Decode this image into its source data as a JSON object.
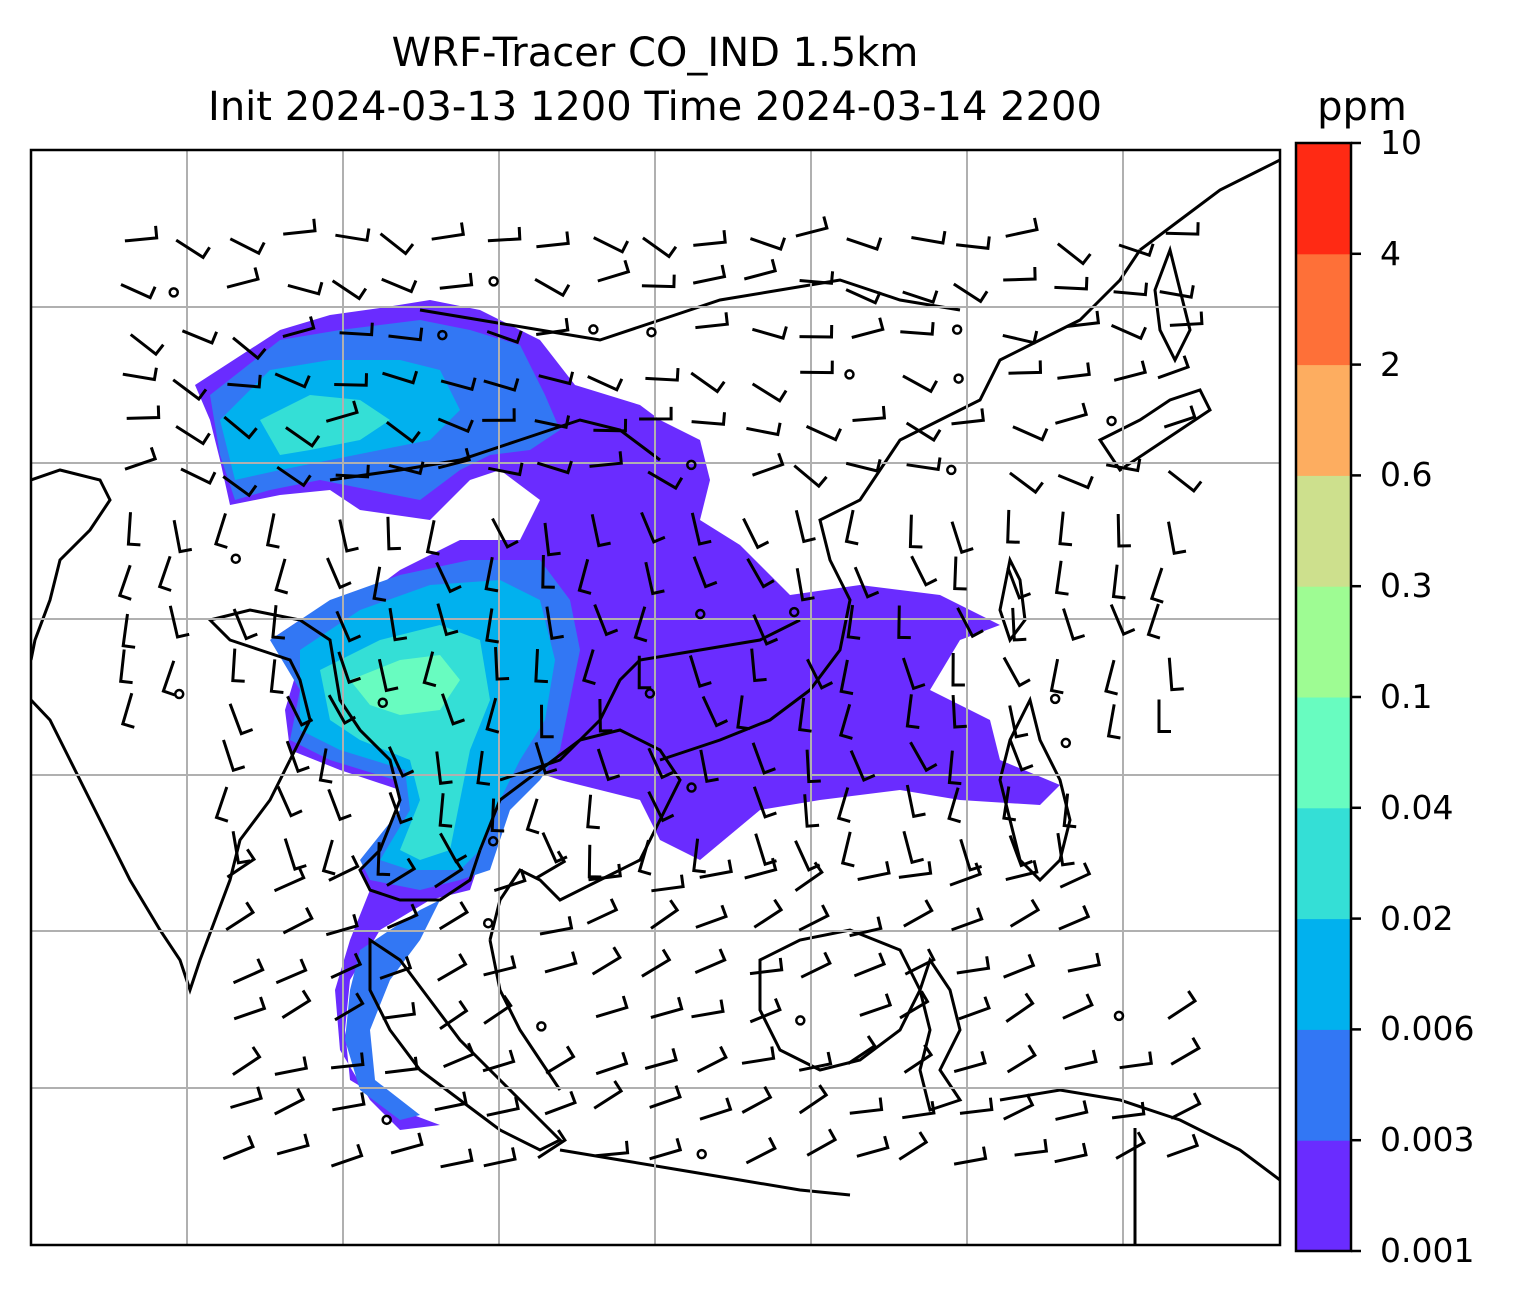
{
  "title": {
    "line1": "WRF-Tracer CO_IND 1.5km",
    "line2": "Init 2024-03-13 1200 Time 2024-03-14 2200"
  },
  "colorbar": {
    "unit": "ppm",
    "levels": [
      "0.001",
      "0.003",
      "0.006",
      "0.02",
      "0.04",
      "0.1",
      "0.3",
      "0.6",
      "2",
      "4",
      "10"
    ],
    "colors": [
      "#6a2cff",
      "#3277f4",
      "#01b1ee",
      "#34dfd6",
      "#68fcc0",
      "#9efc93",
      "#cde08d",
      "#fdad60",
      "#fe7038",
      "#ff2a14"
    ]
  },
  "map": {
    "gridlines": true,
    "wind_barbs": true,
    "plume_colors_used": [
      "#6a2cff",
      "#3277f4",
      "#01b1ee",
      "#34dfd6",
      "#68fcc0"
    ]
  }
}
